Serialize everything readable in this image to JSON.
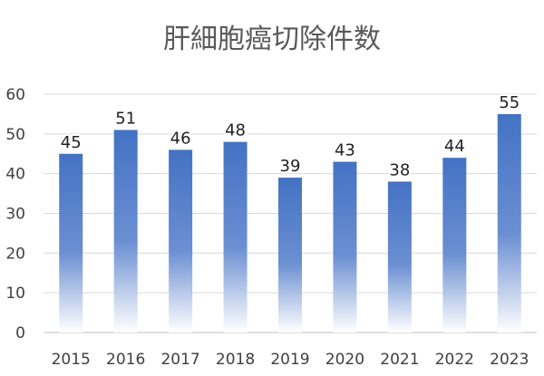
{
  "chart_data": {
    "type": "bar",
    "title": "肝細胞癌切除件数",
    "categories": [
      "2015",
      "2016",
      "2017",
      "2018",
      "2019",
      "2020",
      "2021",
      "2022",
      "2023"
    ],
    "values": [
      45,
      51,
      46,
      48,
      39,
      43,
      38,
      44,
      55
    ],
    "xlabel": "",
    "ylabel": "",
    "ylim": [
      0,
      60
    ],
    "yticks": [
      0,
      10,
      20,
      30,
      40,
      50,
      60
    ],
    "grid": true,
    "legend": "none",
    "data_labels": true,
    "bar_color_top": "#4472C4",
    "bar_color_bottom": "#FFFFFF"
  }
}
